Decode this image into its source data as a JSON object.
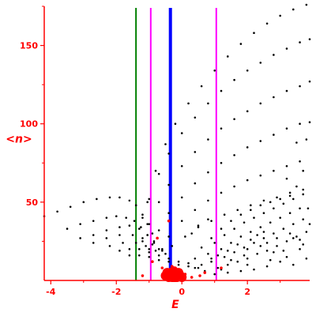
{
  "chart_data": {
    "type": "scatter",
    "xlabel": "E",
    "ylabel": "<n>",
    "xlim": [
      -4.2,
      3.9
    ],
    "ylim": [
      0,
      175
    ],
    "x_ticks": [
      -4,
      -2,
      0,
      2
    ],
    "y_ticks": [
      50,
      100,
      150
    ],
    "x_tick_labels": [
      "-4",
      "-2",
      "0",
      "2"
    ],
    "y_tick_labels": [
      "50",
      "100",
      "150"
    ],
    "colors": {
      "axes": "#ff0000",
      "tick_labels": "#ff0000",
      "points": "#000000",
      "red_points": "#ff0000",
      "green_line": "#008000",
      "blue_line": "#0000ff",
      "magenta_line": "#ff00ff"
    },
    "vertical_lines": [
      {
        "x": -1.4,
        "color": "#008000"
      },
      {
        "x": -0.95,
        "color": "#ff00ff"
      },
      {
        "x": -0.35,
        "color": "#0000ff"
      },
      {
        "x": 1.05,
        "color": "#ff00ff"
      }
    ],
    "series": [
      {
        "points": [
          [
            -1.05,
            50
          ],
          [
            -0.8,
            70
          ],
          [
            -0.5,
            87
          ],
          [
            -0.2,
            100
          ],
          [
            0.2,
            113
          ],
          [
            0.6,
            124
          ],
          [
            1.0,
            134
          ],
          [
            1.4,
            143
          ],
          [
            1.8,
            151
          ],
          [
            2.2,
            158
          ],
          [
            2.6,
            164
          ],
          [
            3.0,
            169
          ],
          [
            3.4,
            173
          ],
          [
            3.8,
            176
          ]
        ]
      },
      {
        "points": [
          [
            -1.2,
            40
          ],
          [
            -1.0,
            52
          ],
          [
            -0.7,
            68
          ],
          [
            -0.4,
            81
          ],
          [
            0.0,
            94
          ],
          [
            0.4,
            104
          ],
          [
            0.8,
            113
          ],
          [
            1.2,
            121
          ],
          [
            1.6,
            128
          ],
          [
            2.0,
            134
          ],
          [
            2.4,
            139
          ],
          [
            2.8,
            144
          ],
          [
            3.2,
            148
          ],
          [
            3.6,
            152
          ],
          [
            3.9,
            154
          ]
        ]
      },
      {
        "points": [
          [
            -1.2,
            25
          ],
          [
            -1.0,
            36
          ],
          [
            -0.7,
            50
          ],
          [
            -0.4,
            61
          ],
          [
            0.0,
            73
          ],
          [
            0.4,
            82
          ],
          [
            0.8,
            90
          ],
          [
            1.2,
            97
          ],
          [
            1.6,
            103
          ],
          [
            2.0,
            108
          ],
          [
            2.4,
            113
          ],
          [
            2.8,
            117
          ],
          [
            3.2,
            121
          ],
          [
            3.6,
            124
          ],
          [
            3.9,
            127
          ]
        ]
      },
      {
        "points": [
          [
            -1.0,
            20
          ],
          [
            -0.7,
            32
          ],
          [
            -0.4,
            43
          ],
          [
            0.0,
            53
          ],
          [
            0.4,
            62
          ],
          [
            0.8,
            69
          ],
          [
            1.2,
            75
          ],
          [
            1.6,
            80
          ],
          [
            2.0,
            85
          ],
          [
            2.4,
            89
          ],
          [
            2.8,
            93
          ],
          [
            3.2,
            97
          ],
          [
            3.6,
            100
          ],
          [
            3.9,
            101
          ]
        ]
      },
      {
        "points": [
          [
            -0.7,
            20
          ],
          [
            -0.4,
            28
          ],
          [
            0.0,
            38
          ],
          [
            0.4,
            45
          ],
          [
            0.8,
            51
          ],
          [
            1.2,
            56
          ],
          [
            1.6,
            60
          ],
          [
            2.0,
            64
          ],
          [
            2.4,
            67
          ],
          [
            2.8,
            70
          ],
          [
            3.2,
            73
          ],
          [
            3.6,
            76
          ]
        ]
      },
      {
        "points": [
          [
            -0.3,
            22
          ],
          [
            0.1,
            28
          ],
          [
            0.5,
            34
          ],
          [
            0.9,
            38
          ],
          [
            1.3,
            42
          ],
          [
            1.7,
            45
          ],
          [
            2.1,
            48
          ],
          [
            2.5,
            51
          ],
          [
            2.9,
            53
          ],
          [
            3.3,
            56
          ],
          [
            3.7,
            58
          ]
        ]
      },
      {
        "points": [
          [
            -4.2,
            41
          ],
          [
            -3.8,
            44
          ],
          [
            -3.4,
            47
          ],
          [
            -3.0,
            50
          ],
          [
            -2.6,
            52
          ],
          [
            -2.2,
            53
          ],
          [
            -1.9,
            53
          ],
          [
            -1.6,
            51
          ],
          [
            -1.4,
            48
          ],
          [
            -1.2,
            42
          ],
          [
            -1.05,
            36
          ],
          [
            -0.9,
            30
          ]
        ]
      },
      {
        "points": [
          [
            -3.5,
            33
          ],
          [
            -3.1,
            36
          ],
          [
            -2.7,
            38
          ],
          [
            -2.3,
            40
          ],
          [
            -2.0,
            41
          ],
          [
            -1.7,
            40
          ],
          [
            -1.45,
            38
          ],
          [
            -1.25,
            34
          ],
          [
            -1.05,
            29
          ],
          [
            -0.85,
            24
          ]
        ]
      },
      {
        "points": [
          [
            -3.1,
            27
          ],
          [
            -2.7,
            29
          ],
          [
            -2.3,
            32
          ],
          [
            -1.9,
            34
          ],
          [
            -1.6,
            35
          ],
          [
            -1.3,
            33
          ],
          [
            -1.05,
            29
          ],
          [
            -0.85,
            25
          ],
          [
            -0.6,
            20
          ]
        ]
      },
      {
        "points": [
          [
            -2.7,
            24
          ],
          [
            -2.3,
            27
          ],
          [
            -1.9,
            29
          ],
          [
            -1.5,
            29
          ],
          [
            -1.2,
            27
          ],
          [
            -0.9,
            23
          ],
          [
            -0.6,
            19
          ]
        ]
      },
      {
        "points": [
          [
            -2.2,
            22
          ],
          [
            -1.8,
            24
          ],
          [
            -1.4,
            24
          ],
          [
            -1.1,
            22
          ],
          [
            -0.8,
            19
          ],
          [
            -0.5,
            17
          ]
        ]
      },
      {
        "points": [
          [
            -1.9,
            19
          ],
          [
            -1.6,
            20
          ],
          [
            -1.3,
            20
          ],
          [
            -1.0,
            18
          ],
          [
            -0.7,
            16
          ],
          [
            -0.4,
            14
          ],
          [
            -0.1,
            12
          ],
          [
            0.2,
            11
          ]
        ]
      },
      {
        "points": [
          [
            -1.6,
            16
          ],
          [
            -1.3,
            16
          ],
          [
            -1.0,
            15
          ],
          [
            -0.7,
            13
          ],
          [
            -0.4,
            12
          ],
          [
            -0.1,
            10
          ],
          [
            0.2,
            9
          ],
          [
            0.5,
            8
          ]
        ]
      },
      {
        "points": [
          [
            1.1,
            8
          ],
          [
            1.4,
            10
          ],
          [
            1.7,
            12
          ],
          [
            2.0,
            14
          ],
          [
            2.3,
            17
          ],
          [
            2.6,
            19
          ],
          [
            2.9,
            22
          ],
          [
            3.2,
            25
          ],
          [
            3.5,
            28
          ],
          [
            3.8,
            31
          ],
          [
            1.3,
            15
          ],
          [
            1.6,
            18
          ],
          [
            1.9,
            21
          ],
          [
            2.2,
            24
          ],
          [
            2.5,
            27
          ],
          [
            2.8,
            30
          ],
          [
            3.1,
            33
          ],
          [
            3.4,
            36
          ],
          [
            3.7,
            39
          ],
          [
            0.9,
            12
          ],
          [
            1.2,
            20
          ],
          [
            1.5,
            24
          ],
          [
            1.8,
            28
          ],
          [
            2.1,
            31
          ],
          [
            2.4,
            34
          ],
          [
            2.7,
            37
          ],
          [
            3.0,
            40
          ],
          [
            3.3,
            43
          ],
          [
            3.6,
            46
          ],
          [
            0.6,
            10
          ],
          [
            0.8,
            17
          ],
          [
            1.0,
            24
          ],
          [
            1.3,
            29
          ],
          [
            1.6,
            33
          ],
          [
            1.9,
            37
          ],
          [
            2.2,
            40
          ],
          [
            2.5,
            43
          ],
          [
            2.8,
            46
          ],
          [
            3.1,
            49
          ],
          [
            3.4,
            52
          ],
          [
            3.7,
            55
          ],
          [
            0.4,
            14
          ],
          [
            0.6,
            21
          ],
          [
            0.9,
            27
          ],
          [
            1.2,
            33
          ],
          [
            1.5,
            38
          ],
          [
            1.8,
            42
          ],
          [
            2.1,
            45
          ],
          [
            2.4,
            48
          ],
          [
            2.7,
            50
          ],
          [
            3.0,
            52
          ],
          [
            3.3,
            54
          ],
          [
            0.3,
            30
          ],
          [
            0.5,
            35
          ],
          [
            0.8,
            39
          ],
          [
            2.0,
            20
          ],
          [
            2.4,
            22
          ],
          [
            2.8,
            18
          ],
          [
            3.2,
            15
          ],
          [
            3.6,
            20
          ],
          [
            3.0,
            12
          ],
          [
            3.4,
            10
          ],
          [
            2.6,
            9
          ],
          [
            2.2,
            7
          ],
          [
            1.8,
            6
          ],
          [
            1.4,
            5
          ],
          [
            1.0,
            4
          ],
          [
            3.8,
            14
          ],
          [
            3.6,
            26
          ],
          [
            3.3,
            30
          ],
          [
            2.9,
            27
          ],
          [
            2.5,
            31
          ],
          [
            2.1,
            26
          ],
          [
            1.7,
            23
          ],
          [
            1.5,
            13
          ],
          [
            1.2,
            7
          ],
          [
            3.5,
            60
          ],
          [
            3.2,
            65
          ],
          [
            3.7,
            70
          ],
          [
            3.8,
            90
          ],
          [
            3.5,
            88
          ],
          [
            0.7,
            6
          ],
          [
            0.4,
            8
          ],
          [
            3.9,
            36
          ],
          [
            3.85,
            46
          ],
          [
            2.0,
            10
          ],
          [
            2.7,
            13
          ],
          [
            1.9,
            16
          ],
          [
            3.1,
            19
          ],
          [
            3.7,
            23
          ],
          [
            2.3,
            29
          ],
          [
            1.4,
            19
          ],
          [
            1.1,
            16
          ],
          [
            0.9,
            14
          ],
          [
            2.6,
            24
          ],
          [
            3.4,
            27
          ]
        ]
      },
      {
        "name": "",
        "color": "red",
        "points": [
          [
            -0.35,
            5
          ],
          [
            -0.3,
            3
          ],
          [
            -0.25,
            6
          ],
          [
            -0.2,
            4
          ],
          [
            -0.15,
            2
          ],
          [
            -0.4,
            2
          ],
          [
            -0.45,
            5
          ],
          [
            -0.1,
            5
          ],
          [
            -0.05,
            3
          ],
          [
            0.0,
            2
          ],
          [
            -0.5,
            3
          ],
          [
            -0.2,
            8
          ],
          [
            -0.3,
            9
          ],
          [
            0.1,
            4
          ],
          [
            0.3,
            2
          ],
          [
            -0.6,
            8
          ],
          [
            -0.9,
            12
          ],
          [
            -0.75,
            27
          ],
          [
            -0.4,
            38
          ],
          [
            1.2,
            8
          ],
          [
            0.7,
            5
          ],
          [
            -1.2,
            3
          ],
          [
            0.55,
            3
          ]
        ]
      }
    ]
  }
}
